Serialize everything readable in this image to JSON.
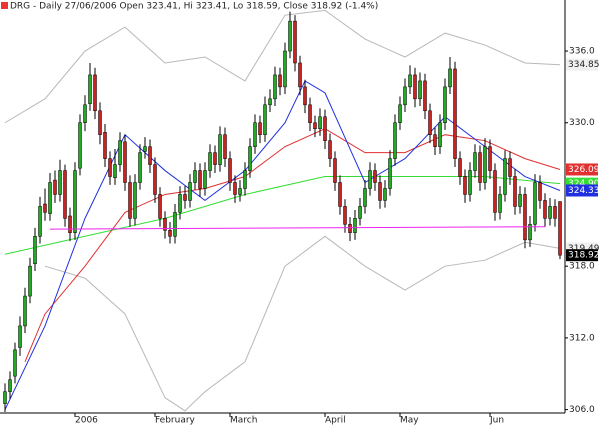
{
  "chart_data": {
    "type": "candlestick",
    "title": "DRG - Daily 27/06/2006 Open 323.41, Hi 323.41, Lo 318.59, Close 318.92 (-1.4%)",
    "up_color": "#22aa22",
    "down_color": "#cc2222",
    "candles": {
      "open": [
        306.5,
        307.5,
        308.8,
        311.2,
        313,
        315.5,
        318.2,
        320.5,
        323.2,
        322.4,
        325.2,
        324,
        326,
        322.2,
        320.8,
        326.2,
        330,
        331.6,
        334,
        331,
        329.2,
        327,
        325.4,
        326.5,
        328.4,
        325,
        322,
        325,
        327.6,
        328,
        326.5,
        324,
        322,
        321,
        320.5,
        322.5,
        324,
        323.5,
        325,
        326,
        324.5,
        326,
        327.5,
        326.5,
        329,
        327,
        325,
        324,
        324.5,
        326,
        328,
        330,
        329,
        331.5,
        332,
        334,
        333,
        336,
        338.5,
        335,
        333,
        331.5,
        330,
        329.5,
        330.5,
        328.5,
        327,
        325,
        323,
        321.5,
        320.8,
        322,
        323,
        324.5,
        326,
        325,
        323.5,
        324.5,
        327,
        330,
        331.5,
        333,
        334,
        332,
        333.5,
        331,
        329,
        328,
        330,
        333,
        334.5,
        327,
        325.5,
        324,
        326,
        327.5,
        325,
        328,
        326,
        322.5,
        324,
        327,
        325.5,
        323,
        324,
        320.2,
        321.5,
        325,
        323.5,
        322,
        323,
        323.41
      ],
      "high": [
        308.2,
        309.2,
        311.6,
        313.8,
        316.2,
        318.7,
        321.2,
        323.8,
        324.5,
        325.8,
        326,
        326.9,
        326.5,
        322.9,
        326.7,
        330.7,
        332.3,
        335,
        334.6,
        331.7,
        329.9,
        327.6,
        327.8,
        329.2,
        329,
        325.6,
        325.7,
        328.2,
        328.8,
        328.6,
        327.1,
        324.6,
        322.6,
        321.7,
        323.2,
        324.7,
        324.7,
        325.7,
        326.7,
        326.6,
        326.7,
        328.2,
        328.1,
        329.7,
        329.6,
        327.6,
        325.6,
        325.2,
        326.7,
        328.7,
        330.7,
        330.6,
        332.2,
        332.8,
        334.7,
        334.6,
        336.7,
        339.3,
        339,
        335.6,
        333.6,
        332.1,
        330.6,
        331.2,
        331.1,
        329.1,
        327.6,
        325.6,
        323.6,
        322.1,
        322.7,
        323.7,
        325.2,
        326.7,
        326.6,
        325.6,
        325.2,
        327.7,
        330.7,
        332.2,
        333.7,
        334.8,
        334.6,
        334.2,
        334.1,
        331.6,
        329.6,
        330.7,
        333.7,
        335.5,
        335.1,
        327.6,
        326.1,
        326.7,
        328.2,
        328.1,
        328.7,
        328.6,
        326.6,
        324.7,
        327.7,
        327.6,
        326.1,
        324.7,
        324.6,
        322.2,
        325.7,
        325.6,
        324.1,
        323.7,
        323.6,
        323.41
      ],
      "low": [
        305.8,
        306.9,
        308.2,
        310.5,
        312.4,
        314.9,
        317.6,
        319.9,
        321.8,
        321.8,
        323.3,
        323.4,
        321.3,
        320.1,
        320.2,
        325.6,
        329.3,
        331,
        330.3,
        328.2,
        326.3,
        324.8,
        324.8,
        325.9,
        324.3,
        321.3,
        321.4,
        324.4,
        327,
        325.8,
        323.3,
        321.3,
        320.3,
        319.9,
        319.9,
        321.9,
        322.8,
        322.9,
        324.4,
        323.8,
        323.9,
        325.4,
        325.8,
        325.9,
        326.3,
        324.3,
        323.3,
        323.4,
        323.9,
        325.4,
        327.4,
        328.3,
        328.4,
        330.9,
        331.4,
        332.3,
        332.4,
        335.4,
        334.3,
        332.3,
        330.8,
        329.3,
        328.8,
        328.9,
        327.8,
        326.3,
        324.3,
        322.3,
        320.8,
        320.1,
        320.2,
        321.4,
        322.4,
        323.9,
        324.3,
        322.8,
        322.9,
        323.9,
        326.4,
        329.4,
        330.9,
        332.4,
        331.3,
        331.4,
        330.3,
        328.3,
        327.3,
        327.4,
        329.4,
        332.4,
        326.3,
        324.8,
        323.3,
        323.4,
        325.4,
        324.3,
        324.4,
        325.3,
        321.8,
        321.9,
        323.4,
        324.8,
        322.3,
        322.4,
        319.5,
        319.6,
        320.9,
        322.8,
        321.3,
        321.4,
        321.3,
        318.59
      ],
      "close": [
        307.5,
        308.5,
        311,
        313,
        315.5,
        318,
        320.5,
        323,
        322.5,
        325,
        324,
        326,
        322,
        320.8,
        326,
        330,
        331.5,
        334,
        331,
        329,
        327,
        325.5,
        326.5,
        328.5,
        325,
        322,
        325,
        327.5,
        328,
        326.5,
        324,
        322,
        321,
        320.5,
        322.5,
        324,
        323.5,
        325,
        326,
        324.5,
        326,
        327.5,
        326.5,
        329,
        327,
        325,
        324,
        324.5,
        326,
        328,
        330,
        329,
        331.5,
        332,
        334,
        333,
        336,
        338.5,
        335,
        333,
        331.5,
        330,
        329.5,
        330.5,
        328.5,
        327,
        325,
        323,
        321.5,
        320.8,
        322,
        323,
        324.5,
        326,
        325,
        323.5,
        324.5,
        327,
        330,
        331.5,
        333,
        334,
        332,
        333.5,
        331,
        329,
        328,
        330,
        333,
        334.5,
        327,
        325.5,
        324,
        326,
        327.5,
        325,
        328,
        326,
        322.5,
        324,
        327,
        325.5,
        323,
        324,
        320.2,
        321.5,
        325,
        323.5,
        322,
        323,
        322,
        318.92
      ]
    },
    "series": [
      {
        "color": "#b8b8b8",
        "x": [
          8,
          16,
          24,
          32,
          36,
          40,
          48,
          56,
          64,
          72,
          80,
          88,
          96,
          104,
          111
        ],
        "values": [
          318,
          317,
          314,
          307,
          305.9,
          307.5,
          310,
          318,
          320.5,
          318,
          316,
          318,
          318.5,
          320,
          319.491
        ]
      },
      {
        "color": "#b8b8b8",
        "x": [
          0,
          8,
          16,
          24,
          32,
          40,
          48,
          56,
          64,
          72,
          80,
          88,
          96,
          104,
          111
        ],
        "values": [
          330,
          332,
          336,
          338,
          335,
          335.5,
          333.5,
          339,
          339.4,
          337,
          335.5,
          337.5,
          336.5,
          335,
          334.855
        ]
      },
      {
        "color": "#33dd33",
        "x": [
          0,
          16,
          32,
          48,
          64,
          80,
          96,
          111
        ],
        "values": [
          319,
          320.5,
          322,
          324,
          325.5,
          325.5,
          325.5,
          324.902
        ]
      },
      {
        "color": "#e03030",
        "x": [
          4,
          8,
          16,
          24,
          32,
          40,
          48,
          56,
          64,
          72,
          80,
          88,
          96,
          104,
          111
        ],
        "values": [
          310,
          314,
          318,
          322.5,
          324,
          324.5,
          325.5,
          328,
          329.5,
          327.5,
          327.5,
          329,
          328.5,
          327,
          326.091
        ]
      },
      {
        "color": "#2030e0",
        "x": [
          0,
          8,
          16,
          24,
          32,
          40,
          48,
          56,
          60,
          64,
          72,
          80,
          88,
          96,
          104,
          111
        ],
        "values": [
          306,
          313,
          322,
          329,
          326,
          323.5,
          326,
          330,
          333.5,
          332.5,
          325,
          327,
          330.5,
          328,
          325.5,
          324.332
        ]
      }
    ],
    "trendline": {
      "color": "#ee22ee",
      "x": [
        9,
        108
      ],
      "values": [
        321.1,
        321.3
      ]
    },
    "xlim": [
      -1,
      112
    ],
    "ylim": [
      305.8,
      339.6
    ],
    "xticks": [
      {
        "value": 14,
        "label": "2006"
      },
      {
        "value": 30,
        "label": "February"
      },
      {
        "value": 45,
        "label": "March"
      },
      {
        "value": 64,
        "label": "April"
      },
      {
        "value": 79,
        "label": "May"
      },
      {
        "value": 97,
        "label": "Jun"
      }
    ],
    "yticks": [
      {
        "value": 306,
        "label": "306.0"
      },
      {
        "value": 312,
        "label": "312.0"
      },
      {
        "value": 318,
        "label": "318.0"
      },
      {
        "value": 330,
        "label": "330.0"
      },
      {
        "value": 336,
        "label": "336.0"
      }
    ]
  }
}
